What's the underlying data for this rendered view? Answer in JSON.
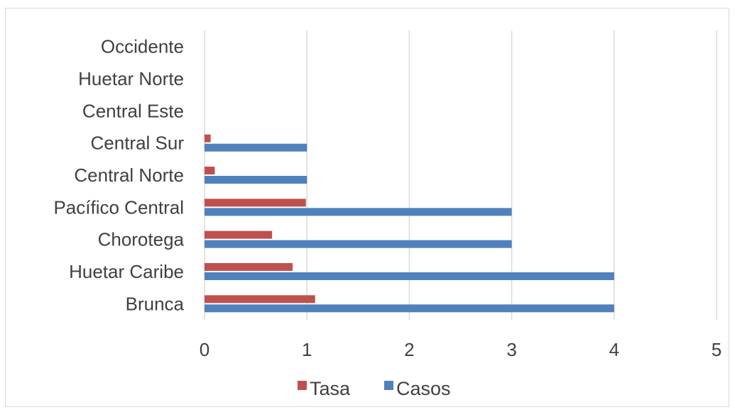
{
  "chart_data": {
    "type": "bar",
    "orientation": "horizontal",
    "categories": [
      "Brunca",
      "Huetar Caribe",
      "Chorotega",
      "Pacífico Central ",
      "Central Norte",
      "Central Sur",
      "Central Este",
      "Huetar Norte",
      "Occidente"
    ],
    "series": [
      {
        "name": "Casos",
        "color": "#4f81bd",
        "values": [
          4,
          4,
          3,
          3,
          1,
          1,
          0,
          0,
          0
        ]
      },
      {
        "name": "Tasa",
        "color": "#c0504d",
        "values": [
          1.08,
          0.86,
          0.66,
          0.99,
          0.1,
          0.06,
          0,
          0,
          0
        ]
      }
    ],
    "xlim": [
      0,
      5
    ],
    "xticks": [
      "0",
      "1",
      "2",
      "3",
      "4",
      "5"
    ],
    "title": "",
    "xlabel": "",
    "ylabel": "",
    "grid": "vertical",
    "legend": {
      "position": "bottom",
      "entries": [
        "Tasa",
        "Casos"
      ]
    }
  }
}
